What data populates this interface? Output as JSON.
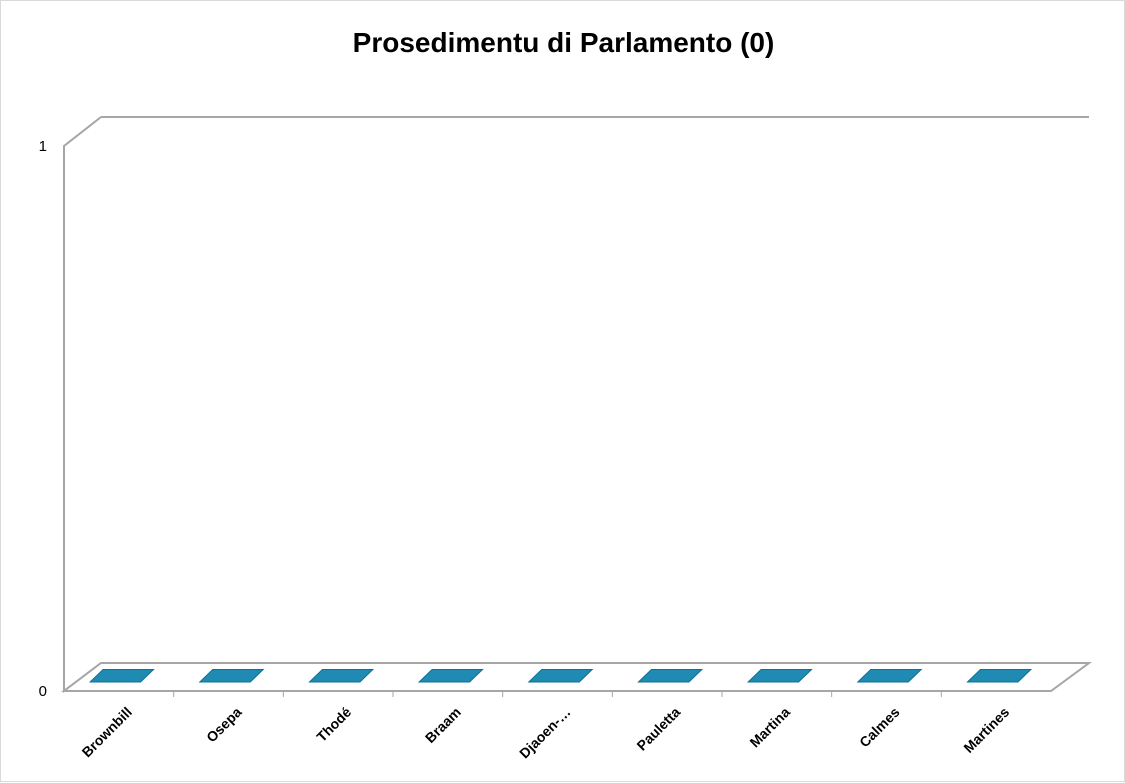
{
  "chart_data": {
    "type": "bar",
    "title": "Prosedimentu di Parlamento (0)",
    "categories": [
      "Brownbill",
      "Osepa",
      "Thodé",
      "Braam",
      "Djaoen-…",
      "Pauletta",
      "Martina",
      "Calmes",
      "Martines"
    ],
    "series": [
      {
        "values": [
          0,
          0,
          0,
          0,
          0,
          0,
          0,
          0,
          0
        ]
      }
    ],
    "ylim": [
      0,
      1
    ],
    "yticks": [
      "0",
      "1"
    ],
    "grid": false,
    "legend": "none",
    "bar_color": "#1f8bb3",
    "bar_edge_color": "#0d6f95",
    "axis_color": "#a6a6a6"
  }
}
